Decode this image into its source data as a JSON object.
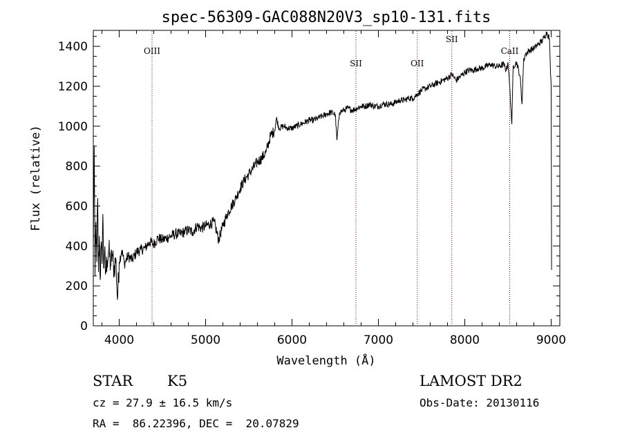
{
  "chart_data": {
    "type": "line",
    "title": "spec-56309-GAC088N20V3_sp10-131.fits",
    "xlabel": "Wavelength (Å)",
    "ylabel": "Flux (relative)",
    "xlim": [
      3700,
      9100
    ],
    "ylim": [
      0,
      1480
    ],
    "xticks": [
      4000,
      5000,
      6000,
      7000,
      8000,
      9000
    ],
    "yticks": [
      0,
      200,
      400,
      600,
      800,
      1000,
      1200,
      1400
    ],
    "grid": false,
    "series": [
      {
        "points": [
          [
            3700,
            380
          ],
          [
            3710,
            900
          ],
          [
            3720,
            250
          ],
          [
            3730,
            520
          ],
          [
            3740,
            320
          ],
          [
            3750,
            640
          ],
          [
            3760,
            270
          ],
          [
            3770,
            450
          ],
          [
            3780,
            230
          ],
          [
            3790,
            400
          ],
          [
            3800,
            310
          ],
          [
            3810,
            560
          ],
          [
            3820,
            290
          ],
          [
            3830,
            380
          ],
          [
            3840,
            260
          ],
          [
            3860,
            330
          ],
          [
            3880,
            380
          ],
          [
            3900,
            300
          ],
          [
            3920,
            360
          ],
          [
            3940,
            280
          ],
          [
            3960,
            340
          ],
          [
            3980,
            130
          ],
          [
            4000,
            320
          ],
          [
            4030,
            380
          ],
          [
            4060,
            310
          ],
          [
            4100,
            350
          ],
          [
            4150,
            330
          ],
          [
            4200,
            370
          ],
          [
            4250,
            380
          ],
          [
            4300,
            390
          ],
          [
            4350,
            420
          ],
          [
            4400,
            410
          ],
          [
            4450,
            440
          ],
          [
            4500,
            430
          ],
          [
            4550,
            440
          ],
          [
            4600,
            450
          ],
          [
            4650,
            460
          ],
          [
            4700,
            460
          ],
          [
            4750,
            470
          ],
          [
            4800,
            480
          ],
          [
            4850,
            470
          ],
          [
            4900,
            500
          ],
          [
            4950,
            490
          ],
          [
            5000,
            500
          ],
          [
            5050,
            510
          ],
          [
            5100,
            520
          ],
          [
            5150,
            430
          ],
          [
            5200,
            500
          ],
          [
            5250,
            560
          ],
          [
            5300,
            600
          ],
          [
            5350,
            640
          ],
          [
            5400,
            690
          ],
          [
            5450,
            730
          ],
          [
            5500,
            760
          ],
          [
            5550,
            790
          ],
          [
            5600,
            820
          ],
          [
            5650,
            840
          ],
          [
            5700,
            870
          ],
          [
            5750,
            950
          ],
          [
            5800,
            980
          ],
          [
            5820,
            1040
          ],
          [
            5850,
            990
          ],
          [
            5900,
            1000
          ],
          [
            5950,
            990
          ],
          [
            6000,
            990
          ],
          [
            6050,
            1000
          ],
          [
            6100,
            1010
          ],
          [
            6150,
            1020
          ],
          [
            6200,
            1030
          ],
          [
            6250,
            1030
          ],
          [
            6300,
            1040
          ],
          [
            6350,
            1050
          ],
          [
            6400,
            1060
          ],
          [
            6450,
            1070
          ],
          [
            6500,
            1060
          ],
          [
            6520,
            930
          ],
          [
            6550,
            1070
          ],
          [
            6600,
            1080
          ],
          [
            6650,
            1090
          ],
          [
            6700,
            1080
          ],
          [
            6750,
            1090
          ],
          [
            6800,
            1100
          ],
          [
            6850,
            1100
          ],
          [
            6900,
            1110
          ],
          [
            6950,
            1100
          ],
          [
            7000,
            1100
          ],
          [
            7050,
            1110
          ],
          [
            7100,
            1110
          ],
          [
            7150,
            1110
          ],
          [
            7200,
            1120
          ],
          [
            7250,
            1130
          ],
          [
            7300,
            1130
          ],
          [
            7350,
            1140
          ],
          [
            7400,
            1140
          ],
          [
            7450,
            1160
          ],
          [
            7500,
            1180
          ],
          [
            7550,
            1190
          ],
          [
            7600,
            1200
          ],
          [
            7650,
            1210
          ],
          [
            7700,
            1220
          ],
          [
            7750,
            1230
          ],
          [
            7800,
            1240
          ],
          [
            7850,
            1260
          ],
          [
            7900,
            1230
          ],
          [
            7950,
            1250
          ],
          [
            8000,
            1270
          ],
          [
            8050,
            1280
          ],
          [
            8100,
            1280
          ],
          [
            8150,
            1290
          ],
          [
            8200,
            1290
          ],
          [
            8250,
            1300
          ],
          [
            8300,
            1310
          ],
          [
            8350,
            1300
          ],
          [
            8400,
            1300
          ],
          [
            8450,
            1310
          ],
          [
            8480,
            1280
          ],
          [
            8500,
            1320
          ],
          [
            8520,
            1200
          ],
          [
            8545,
            1010
          ],
          [
            8560,
            1300
          ],
          [
            8600,
            1320
          ],
          [
            8640,
            1250
          ],
          [
            8662,
            1110
          ],
          [
            8680,
            1320
          ],
          [
            8700,
            1360
          ],
          [
            8750,
            1380
          ],
          [
            8800,
            1390
          ],
          [
            8850,
            1410
          ],
          [
            8900,
            1430
          ],
          [
            8950,
            1470
          ],
          [
            8980,
            1440
          ],
          [
            8990,
            1300
          ],
          [
            9000,
            1200
          ],
          [
            9005,
            280
          ]
        ]
      }
    ],
    "annotations": [
      {
        "label": "OIII",
        "x": 4380
      },
      {
        "label": "SII",
        "x": 6740
      },
      {
        "label": "OII",
        "x": 7450
      },
      {
        "label": "SII",
        "x": 7850
      },
      {
        "label": "CaII",
        "x": 8520
      }
    ]
  },
  "info": {
    "object_class": "STAR",
    "subclass": "K5",
    "survey": "LAMOST DR2",
    "cz": "cz = 27.9 ± 16.5 km/s",
    "obs_date": "Obs-Date: 20130116",
    "coords": "RA =  86.22396, DEC =  20.07829"
  }
}
